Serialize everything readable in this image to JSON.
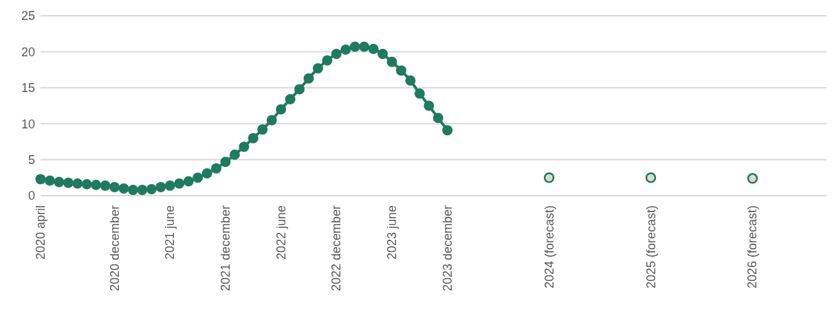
{
  "chart_data": {
    "type": "line",
    "categories": [
      "2020 april",
      null,
      null,
      null,
      null,
      null,
      null,
      null,
      "2020 december",
      null,
      null,
      null,
      null,
      null,
      "2021 june",
      null,
      null,
      null,
      null,
      null,
      "2021 december",
      null,
      null,
      null,
      null,
      null,
      "2022 june",
      null,
      null,
      null,
      null,
      null,
      "2022 december",
      null,
      null,
      null,
      null,
      null,
      "2023 june",
      null,
      null,
      null,
      null,
      null,
      "2023 december",
      null,
      null,
      null,
      null,
      null,
      null,
      null,
      null,
      null,
      null,
      "2024 (forecast)",
      null,
      null,
      null,
      null,
      null,
      null,
      null,
      null,
      null,
      null,
      "2025 (forecast)",
      null,
      null,
      null,
      null,
      null,
      null,
      null,
      null,
      null,
      null,
      "2026 (forecast)",
      null,
      null,
      null,
      null,
      null,
      null,
      null,
      null
    ],
    "series": [
      {
        "color": "#1f7a5f",
        "values": [
          2.3,
          2.1,
          1.9,
          1.8,
          1.7,
          1.6,
          1.5,
          1.4,
          1.2,
          1.0,
          0.8,
          0.8,
          0.9,
          1.2,
          1.4,
          1.7,
          2.0,
          2.5,
          3.1,
          3.8,
          4.7,
          5.7,
          6.8,
          8.0,
          9.2,
          10.5,
          12.0,
          13.4,
          14.8,
          16.3,
          17.7,
          18.8,
          19.7,
          20.3,
          20.7,
          20.7,
          20.4,
          19.7,
          18.6,
          17.4,
          16.0,
          14.2,
          12.5,
          10.8,
          9.1,
          null,
          null,
          null,
          null,
          null,
          null,
          null,
          null,
          null,
          null,
          null,
          null,
          null,
          null,
          null,
          null,
          null,
          null,
          null,
          null,
          null,
          null,
          null,
          null,
          null,
          null,
          null,
          null,
          null,
          null,
          null,
          null,
          null,
          null,
          null,
          null,
          null,
          null,
          null,
          null,
          null
        ]
      },
      {
        "type": "scatter",
        "color": "#1f7a5f",
        "values": [
          null,
          null,
          null,
          null,
          null,
          null,
          null,
          null,
          null,
          null,
          null,
          null,
          null,
          null,
          null,
          null,
          null,
          null,
          null,
          null,
          null,
          null,
          null,
          null,
          null,
          null,
          null,
          null,
          null,
          null,
          null,
          null,
          null,
          null,
          null,
          null,
          null,
          null,
          null,
          null,
          null,
          null,
          null,
          null,
          null,
          null,
          null,
          null,
          null,
          null,
          null,
          null,
          null,
          null,
          null,
          2.5,
          null,
          null,
          null,
          null,
          null,
          null,
          null,
          null,
          null,
          null,
          2.5,
          null,
          null,
          null,
          null,
          null,
          null,
          null,
          null,
          null,
          null,
          2.4,
          null,
          null,
          null,
          null,
          null,
          null,
          null,
          null
        ]
      }
    ],
    "ylim": [
      0,
      25
    ],
    "yticks": [
      0,
      5,
      10,
      15,
      20,
      25
    ],
    "grid": "y",
    "marker": "circle"
  }
}
